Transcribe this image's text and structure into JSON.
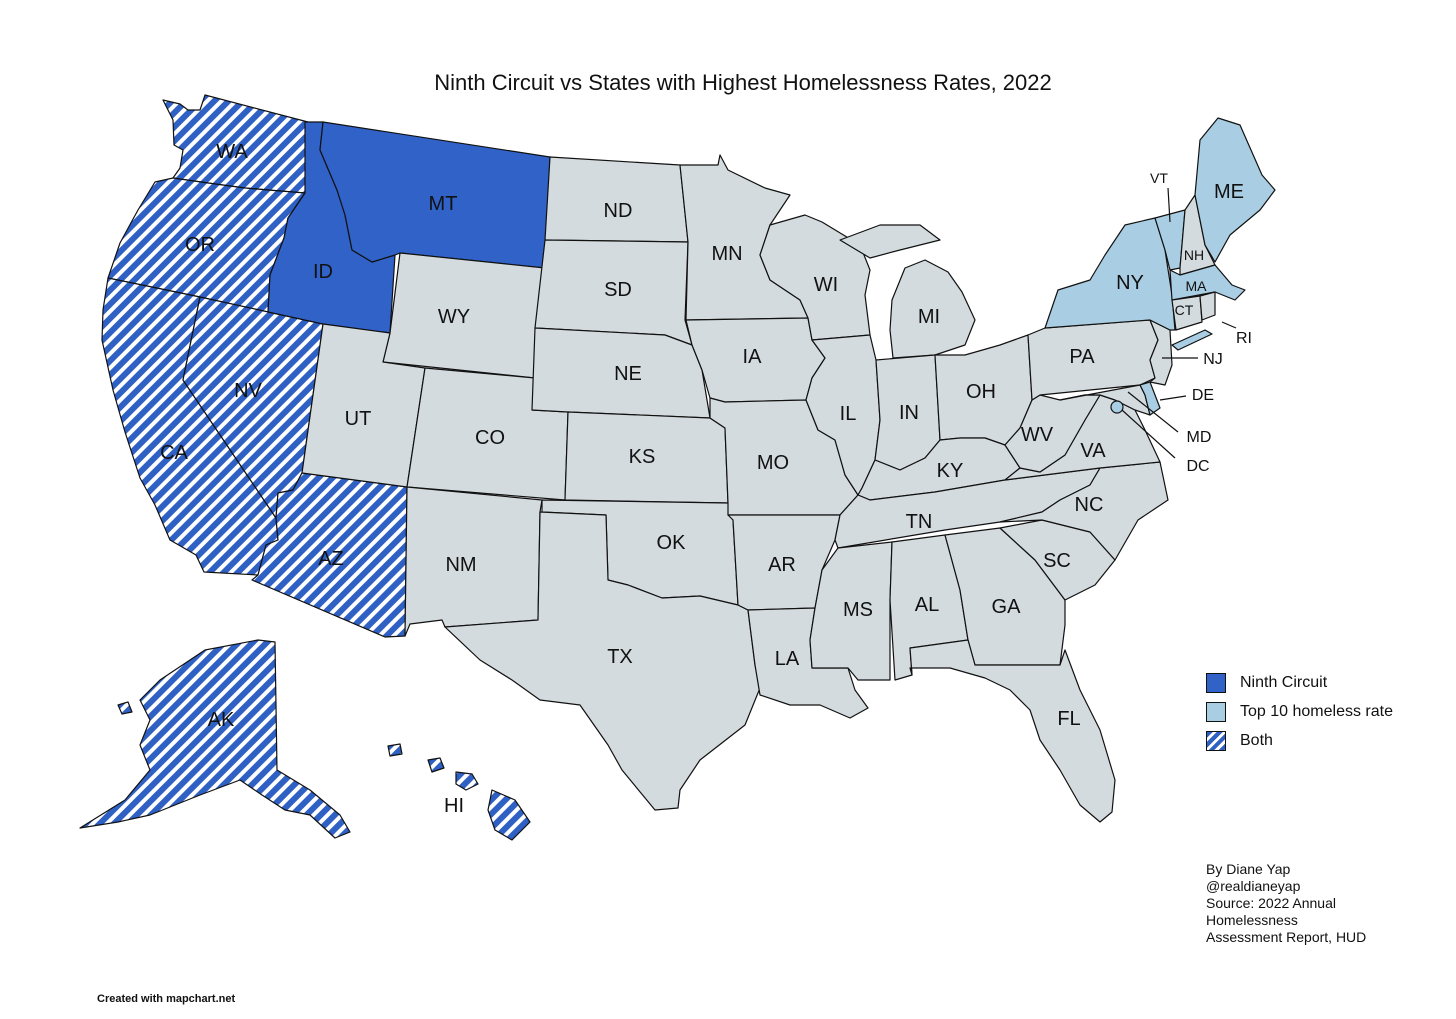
{
  "title": "Ninth Circuit vs States with Highest Homelessness Rates, 2022",
  "colors": {
    "ninth_circuit": "#3062c8",
    "top10": "#a9cde2",
    "both_stripe": "#2f60c3",
    "other": "#d4dbde",
    "border": "#111111"
  },
  "legend": [
    {
      "label": "Ninth Circuit",
      "style": "ninth"
    },
    {
      "label": "Top 10 homeless rate",
      "style": "top10"
    },
    {
      "label": "Both",
      "style": "both"
    }
  ],
  "states": {
    "WA": {
      "label": "WA",
      "category": "both"
    },
    "OR": {
      "label": "OR",
      "category": "both"
    },
    "CA": {
      "label": "CA",
      "category": "both"
    },
    "NV": {
      "label": "NV",
      "category": "both"
    },
    "AZ": {
      "label": "AZ",
      "category": "both"
    },
    "AK": {
      "label": "AK",
      "category": "both"
    },
    "HI": {
      "label": "HI",
      "category": "both"
    },
    "ID": {
      "label": "ID",
      "category": "ninth"
    },
    "MT": {
      "label": "MT",
      "category": "ninth"
    },
    "NY": {
      "label": "NY",
      "category": "top10"
    },
    "ME": {
      "label": "ME",
      "category": "top10"
    },
    "VT": {
      "label": "VT",
      "category": "top10"
    },
    "MA": {
      "label": "MA",
      "category": "top10"
    },
    "DC": {
      "label": "DC",
      "category": "top10"
    },
    "DE": {
      "label": "DE",
      "category": "top10"
    },
    "UT": {
      "label": "UT",
      "category": "other"
    },
    "WY": {
      "label": "WY",
      "category": "other"
    },
    "CO": {
      "label": "CO",
      "category": "other"
    },
    "NM": {
      "label": "NM",
      "category": "other"
    },
    "ND": {
      "label": "ND",
      "category": "other"
    },
    "SD": {
      "label": "SD",
      "category": "other"
    },
    "NE": {
      "label": "NE",
      "category": "other"
    },
    "KS": {
      "label": "KS",
      "category": "other"
    },
    "OK": {
      "label": "OK",
      "category": "other"
    },
    "TX": {
      "label": "TX",
      "category": "other"
    },
    "MN": {
      "label": "MN",
      "category": "other"
    },
    "IA": {
      "label": "IA",
      "category": "other"
    },
    "MO": {
      "label": "MO",
      "category": "other"
    },
    "AR": {
      "label": "AR",
      "category": "other"
    },
    "LA": {
      "label": "LA",
      "category": "other"
    },
    "WI": {
      "label": "WI",
      "category": "other"
    },
    "IL": {
      "label": "IL",
      "category": "other"
    },
    "MI": {
      "label": "MI",
      "category": "other"
    },
    "IN": {
      "label": "IN",
      "category": "other"
    },
    "OH": {
      "label": "OH",
      "category": "other"
    },
    "KY": {
      "label": "KY",
      "category": "other"
    },
    "TN": {
      "label": "TN",
      "category": "other"
    },
    "MS": {
      "label": "MS",
      "category": "other"
    },
    "AL": {
      "label": "AL",
      "category": "other"
    },
    "GA": {
      "label": "GA",
      "category": "other"
    },
    "FL": {
      "label": "FL",
      "category": "other"
    },
    "SC": {
      "label": "SC",
      "category": "other"
    },
    "NC": {
      "label": "NC",
      "category": "other"
    },
    "VA": {
      "label": "VA",
      "category": "other"
    },
    "WV": {
      "label": "WV",
      "category": "other"
    },
    "PA": {
      "label": "PA",
      "category": "other"
    },
    "NJ": {
      "label": "NJ",
      "category": "other"
    },
    "MD": {
      "label": "MD",
      "category": "other"
    },
    "CT": {
      "label": "CT",
      "category": "other"
    },
    "RI": {
      "label": "RI",
      "category": "other"
    },
    "NH": {
      "label": "NH",
      "category": "other"
    }
  },
  "credits": [
    "By Diane Yap",
    "@realdianeyap",
    "Source: 2022 Annual",
    "Homelessness",
    "Assessment Report, HUD"
  ],
  "footer": "Created with mapchart.net"
}
